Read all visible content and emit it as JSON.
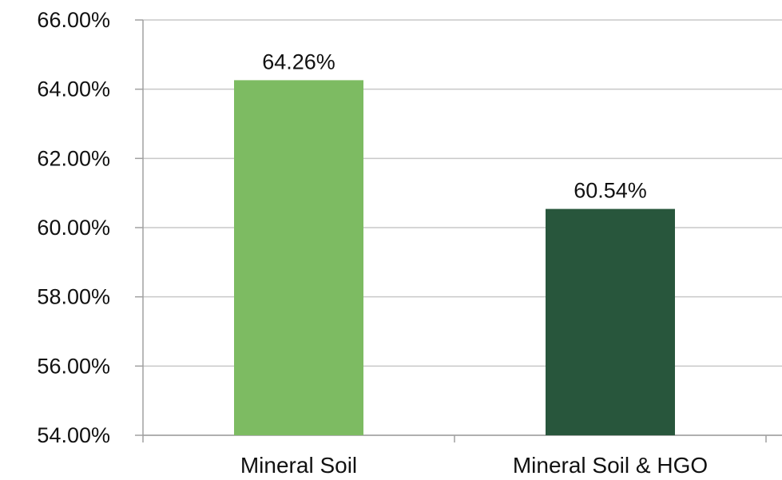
{
  "chart_data": {
    "type": "bar",
    "categories": [
      "Mineral Soil",
      "Mineral Soil & HGO"
    ],
    "values": [
      64.26,
      60.54
    ],
    "data_labels": [
      "64.26%",
      "60.54%"
    ],
    "bar_colors": [
      "#7dbb62",
      "#28563c"
    ],
    "title": "",
    "xlabel": "",
    "ylabel": "",
    "ylim": [
      54,
      66
    ],
    "y_ticks": [
      54,
      56,
      58,
      60,
      62,
      64,
      66
    ],
    "y_tick_labels": [
      "54.00%",
      "56.00%",
      "58.00%",
      "60.00%",
      "62.00%",
      "64.00%",
      "66.00%"
    ],
    "grid": true,
    "legend": "none"
  },
  "colors": {
    "grid": "#c8c8c8",
    "axis": "#a0a0a0",
    "text": "#111111"
  }
}
